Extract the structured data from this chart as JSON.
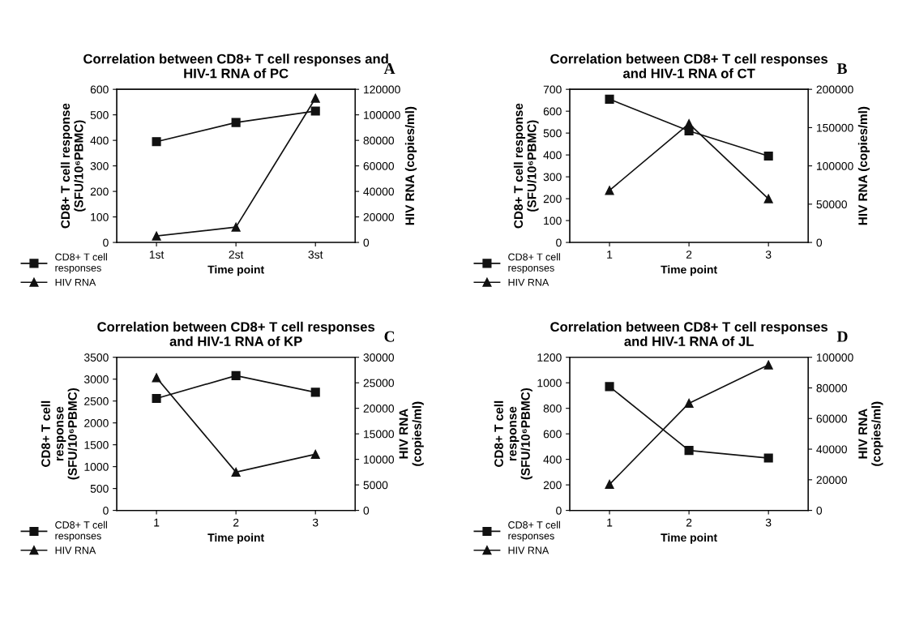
{
  "chart_data": [
    {
      "type": "line",
      "title": "Correlation between CD8+ T cell responses and\nHIV-1 RNA of PC",
      "categories": [
        "1st",
        "2st",
        "3st"
      ],
      "xlabel": "Time point",
      "ylabel": "CD8+ T cell response\n(SFU/10⁶PBMC)",
      "y2label": "HIV RNA (copies/ml)",
      "ylim": [
        0,
        600
      ],
      "yticks": [
        0,
        100,
        200,
        300,
        400,
        500,
        600
      ],
      "y2lim": [
        0,
        120000
      ],
      "y2ticks": [
        0,
        20000,
        40000,
        60000,
        80000,
        100000,
        120000
      ],
      "legend": "bottom left",
      "grid": false,
      "annotations": [
        "A"
      ],
      "series": [
        {
          "name": "CD8+ T cell\nresponses",
          "color": "#111111",
          "marker": "square",
          "values": [
            395,
            470,
            515
          ]
        },
        {
          "name": "HIV RNA",
          "color": "#111111",
          "marker": "triangle",
          "axis": "y2",
          "values": [
            5000,
            12000,
            113000
          ]
        }
      ]
    },
    {
      "type": "line",
      "title": "Correlation between CD8+ T cell responses\nand HIV-1 RNA of CT",
      "categories": [
        "1",
        "2",
        "3"
      ],
      "xlabel": "Time point",
      "ylabel": "CD8+ T cell response\n(SFU/10⁶PBMC)",
      "y2label": "HIV RNA (copies/ml)",
      "ylim": [
        0,
        700
      ],
      "yticks": [
        0,
        100,
        200,
        300,
        400,
        500,
        600,
        700
      ],
      "y2lim": [
        0,
        200000
      ],
      "y2ticks": [
        0,
        50000,
        100000,
        150000,
        200000
      ],
      "legend": "bottom left",
      "grid": false,
      "annotations": [
        "B"
      ],
      "series": [
        {
          "name": "CD8+ T cell\nresponses",
          "color": "#111111",
          "marker": "square",
          "values": [
            655,
            510,
            395
          ]
        },
        {
          "name": "HIV RNA",
          "color": "#111111",
          "marker": "triangle",
          "axis": "y2",
          "values": [
            68000,
            155000,
            57000
          ]
        }
      ]
    },
    {
      "type": "line",
      "title": "Correlation between CD8+ T cell responses\nand HIV-1 RNA of KP",
      "categories": [
        "1",
        "2",
        "3"
      ],
      "xlabel": "Time point",
      "ylabel": "CD8+ T cell\nresponse\n(SFU/10⁶PBMC)",
      "y2label": "HIV RNA\n(copies/ml)",
      "ylim": [
        0,
        3500
      ],
      "yticks": [
        0,
        500,
        1000,
        1500,
        2000,
        2500,
        3000,
        3500
      ],
      "y2lim": [
        0,
        30000
      ],
      "y2ticks": [
        0,
        5000,
        10000,
        15000,
        20000,
        25000,
        30000
      ],
      "legend": "bottom left",
      "grid": false,
      "annotations": [
        "C"
      ],
      "series": [
        {
          "name": "CD8+ T cell\nresponses",
          "color": "#111111",
          "marker": "square",
          "values": [
            2560,
            3080,
            2700
          ]
        },
        {
          "name": "HIV RNA",
          "color": "#111111",
          "marker": "triangle",
          "axis": "y2",
          "values": [
            26000,
            7500,
            11000
          ]
        }
      ]
    },
    {
      "type": "line",
      "title": "Correlation between CD8+ T cell responses\nand HIV-1 RNA of JL",
      "categories": [
        "1",
        "2",
        "3"
      ],
      "xlabel": "Time point",
      "ylabel": "CD8+ T cell\nresponse\n(SFU/10⁶PBMC)",
      "y2label": "HIV RNA\n(copies/ml)",
      "ylim": [
        0,
        1200
      ],
      "yticks": [
        0,
        200,
        400,
        600,
        800,
        1000,
        1200
      ],
      "y2lim": [
        0,
        100000
      ],
      "y2ticks": [
        0,
        20000,
        40000,
        60000,
        80000,
        100000
      ],
      "legend": "bottom left",
      "grid": false,
      "annotations": [
        "D"
      ],
      "series": [
        {
          "name": "CD8+ T cell\nresponses",
          "color": "#111111",
          "marker": "square",
          "values": [
            970,
            470,
            410
          ]
        },
        {
          "name": "HIV RNA",
          "color": "#111111",
          "marker": "triangle",
          "axis": "y2",
          "values": [
            17000,
            70000,
            95000
          ]
        }
      ]
    }
  ]
}
